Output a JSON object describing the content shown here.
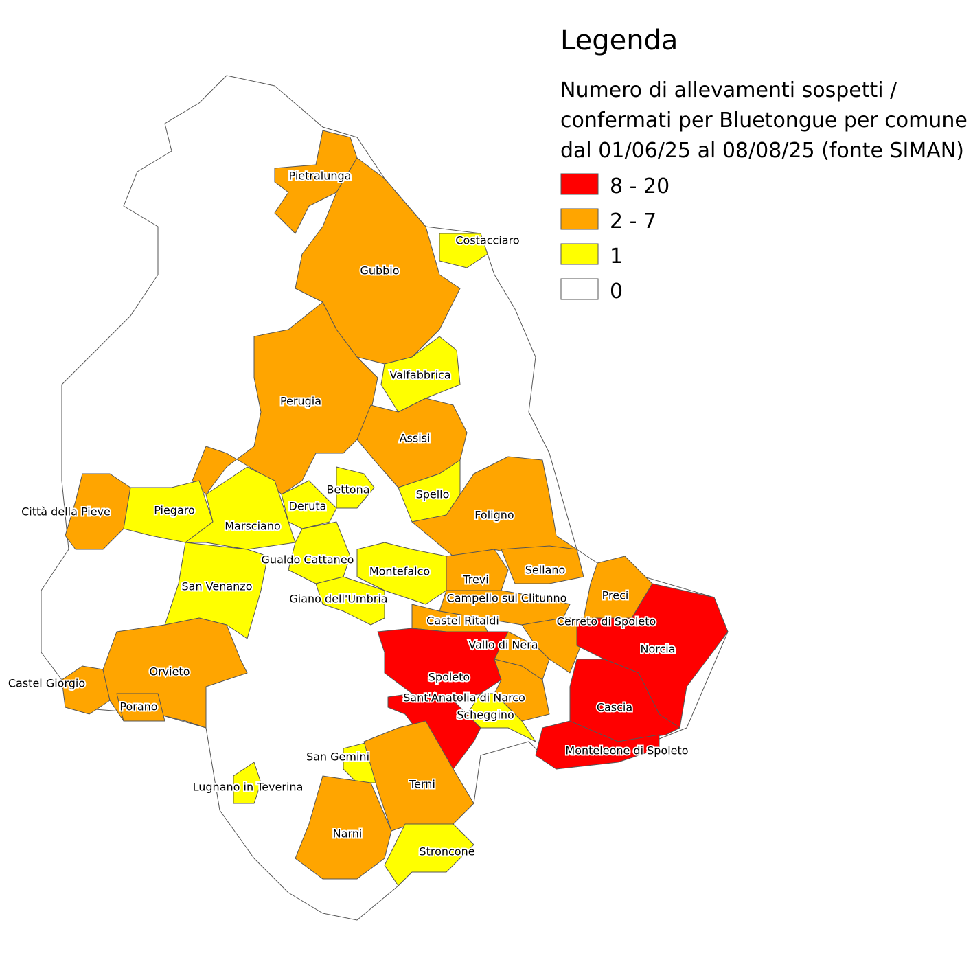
{
  "legend": {
    "title": "Legenda",
    "subtitle_lines": [
      "Numero di allevamenti sospetti /",
      "confermati per Bluetongue per comune",
      "dal 01/06/25 al 08/08/25 (fonte SIMAN)"
    ],
    "classes": [
      {
        "label": "8 - 20",
        "color": "#ff0000"
      },
      {
        "label": "2 - 7",
        "color": "#ffa500"
      },
      {
        "label": "1",
        "color": "#ffff00"
      },
      {
        "label": "0",
        "color": "#ffffff"
      }
    ]
  },
  "municipalities": [
    {
      "name": "Pietralunga",
      "class": 1
    },
    {
      "name": "Gubbio",
      "class": 1
    },
    {
      "name": "Costacciaro",
      "class": 2
    },
    {
      "name": "Valfabbrica",
      "class": 2
    },
    {
      "name": "Perugia",
      "class": 1
    },
    {
      "name": "Assisi",
      "class": 1
    },
    {
      "name": "Spello",
      "class": 2
    },
    {
      "name": "Bettona",
      "class": 2
    },
    {
      "name": "Foligno",
      "class": 1
    },
    {
      "name": "Città della Pieve",
      "class": 1
    },
    {
      "name": "Piegaro",
      "class": 2
    },
    {
      "name": "Deruta",
      "class": 2
    },
    {
      "name": "Marsciano",
      "class": 2
    },
    {
      "name": "Gualdo Cattaneo",
      "class": 2
    },
    {
      "name": "Montefalco",
      "class": 2
    },
    {
      "name": "Sellano",
      "class": 1
    },
    {
      "name": "Trevi",
      "class": 1
    },
    {
      "name": "San Venanzo",
      "class": 2
    },
    {
      "name": "Giano dell'Umbria",
      "class": 2
    },
    {
      "name": "Campello sul Clitunno",
      "class": 1
    },
    {
      "name": "Preci",
      "class": 1
    },
    {
      "name": "Castel Ritaldi",
      "class": 1
    },
    {
      "name": "Cerreto di Spoleto",
      "class": 1
    },
    {
      "name": "Vallo di Nera",
      "class": 1
    },
    {
      "name": "Norcia",
      "class": 0
    },
    {
      "name": "Castel Giorgio",
      "class": 1
    },
    {
      "name": "Orvieto",
      "class": 1
    },
    {
      "name": "Spoleto",
      "class": 0
    },
    {
      "name": "Porano",
      "class": 1
    },
    {
      "name": "Sant'Anatolia di Narco",
      "class": 1
    },
    {
      "name": "Scheggino",
      "class": 2
    },
    {
      "name": "Cascia",
      "class": 0
    },
    {
      "name": "Monteleone di Spoleto",
      "class": 0
    },
    {
      "name": "San Gemini",
      "class": 2
    },
    {
      "name": "Terni",
      "class": 1
    },
    {
      "name": "Lugnano in Teverina",
      "class": 2
    },
    {
      "name": "Narni",
      "class": 1
    },
    {
      "name": "Stroncone",
      "class": 2
    }
  ]
}
